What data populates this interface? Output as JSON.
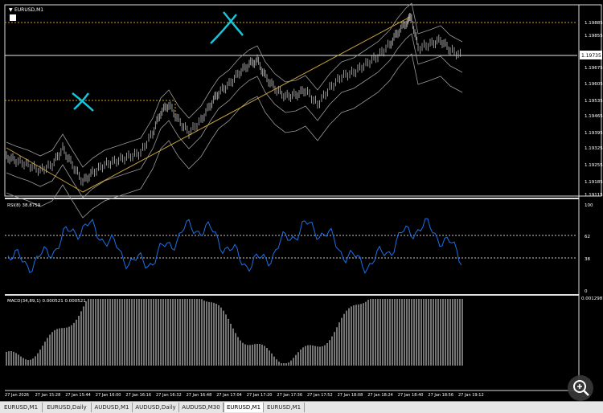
{
  "main_chart": {
    "title": "EURUSD,M1",
    "price_labels": [
      "1.19885",
      "1.19855",
      "1.19725",
      "1.19675",
      "1.19605",
      "1.19535",
      "1.19465",
      "1.19395",
      "1.19325",
      "1.19255",
      "1.19185",
      "1.19115"
    ],
    "current_price": "1.19735",
    "current_price_color": "#ffffff"
  },
  "rsi": {
    "label": "RSI(8) 38.8759",
    "levels": [
      "100",
      "62",
      "38",
      "0"
    ],
    "line_color": "#1e6fe8"
  },
  "macd": {
    "label": "MACD(34,89,1) 0.000521 0.000521",
    "scale_label": "0.001298"
  },
  "time_labels": [
    "27 Jan 2026",
    "27 Jan 15:28",
    "27 Jan 15:44",
    "27 Jan 16:00",
    "27 Jan 16:16",
    "27 Jan 16:32",
    "27 Jan 16:48",
    "27 Jan 17:04",
    "27 Jan 17:20",
    "27 Jan 17:36",
    "27 Jan 17:52",
    "27 Jan 18:08",
    "27 Jan 18:24",
    "27 Jan 18:40",
    "27 Jan 18:56",
    "27 Jan 19:12"
  ],
  "tabs": [
    "EURUSD,M1",
    "EURUSD,Daily",
    "AUDUSD,M1",
    "AUDUSD,Daily",
    "AUDUSD,M30",
    "EURUSD,M1",
    "EURUSD,M1"
  ],
  "active_tab_index": 5,
  "colors": {
    "trendline": "#c8a23c",
    "drawing": "#18c4d8",
    "dotted_levels": "#d4a017"
  },
  "icons": {
    "zoom": "zoom-in-icon",
    "drawing_x_1": "cross-mark-drawing",
    "drawing_x_2": "cross-mark-drawing"
  }
}
